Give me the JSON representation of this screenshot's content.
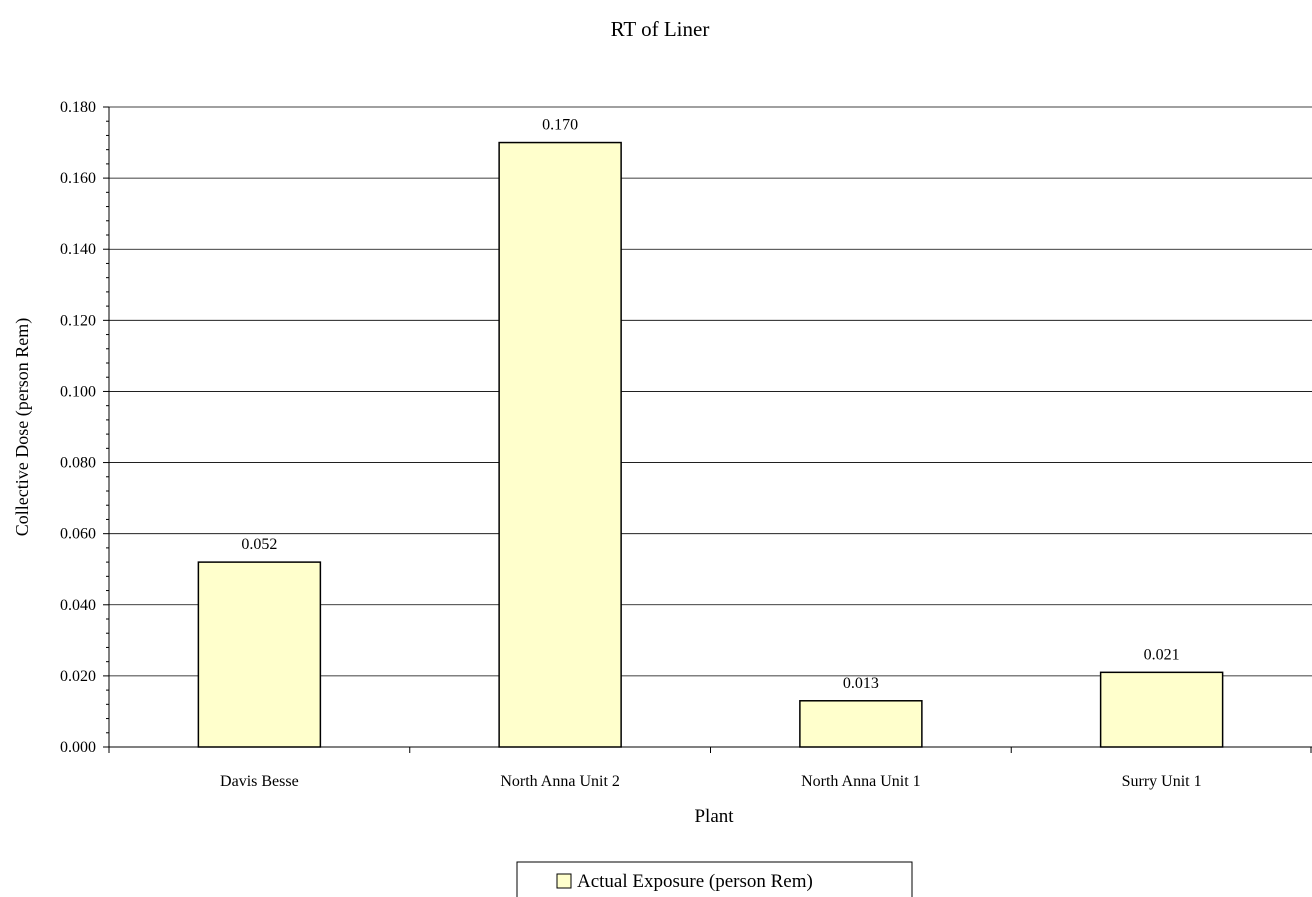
{
  "chart_data": {
    "type": "bar",
    "title": "RT of Liner",
    "xlabel": "Plant",
    "ylabel": "Collective Dose (person Rem)",
    "categories": [
      "Davis Besse",
      "North Anna Unit 2",
      "North Anna Unit 1",
      "Surry Unit 1"
    ],
    "series": [
      {
        "name": "Actual Exposure (person Rem)",
        "values": [
          0.052,
          0.17,
          0.013,
          0.021
        ],
        "labels": [
          "0.052",
          "0.170",
          "0.013",
          "0.021"
        ],
        "color": "#ffffcc"
      }
    ],
    "ylim": [
      0,
      0.18
    ],
    "yticks": [
      "0.000",
      "0.020",
      "0.040",
      "0.060",
      "0.080",
      "0.100",
      "0.120",
      "0.140",
      "0.160",
      "0.180"
    ],
    "grid": true,
    "legend": "bottom-center"
  }
}
